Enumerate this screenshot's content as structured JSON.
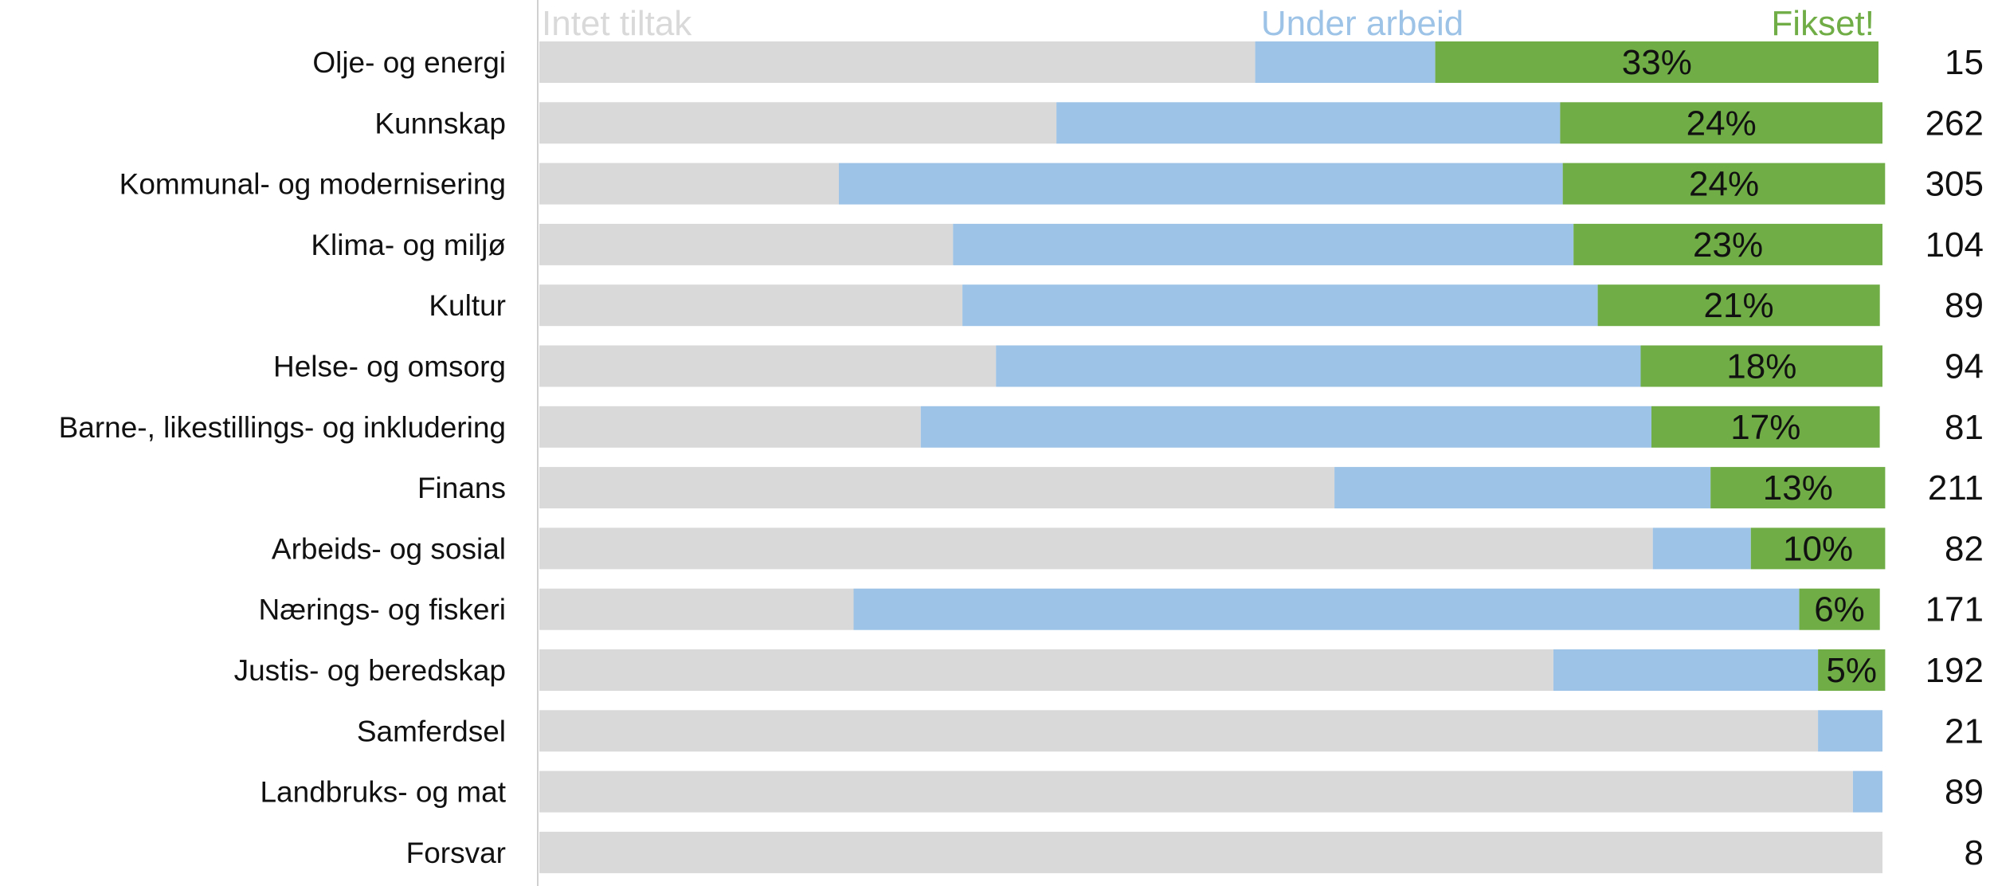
{
  "chart_data": {
    "type": "bar",
    "orientation": "horizontal",
    "stacked": "percent",
    "legend_position": "top",
    "grid": false,
    "xlim": [
      0,
      100
    ],
    "categories": [
      "Olje- og energi",
      "Kunnskap",
      "Kommunal- og modernisering",
      "Klima- og miljø",
      "Kultur",
      "Helse- og omsorg",
      "Barne-, likestillings- og inkludering",
      "Finans",
      "Arbeids- og sosial",
      "Nærings- og fiskeri",
      "Justis- og beredskap",
      "Samferdsel",
      "Landbruks- og mat",
      "Forsvar"
    ],
    "series": [
      {
        "name": "Intet tiltak",
        "color": "#d9d9d9",
        "values": [
          53.3,
          38.5,
          22.3,
          30.8,
          31.5,
          34.0,
          28.4,
          59.2,
          82.9,
          23.4,
          75.5,
          95.2,
          97.8,
          100
        ]
      },
      {
        "name": "Under arbeid",
        "color": "#9dc3e6",
        "values": [
          13.4,
          37.5,
          53.9,
          46.2,
          47.3,
          48.0,
          54.4,
          28.0,
          7.3,
          70.4,
          19.7,
          4.8,
          2.2,
          0
        ]
      },
      {
        "name": "Fikset!",
        "color": "#70ad47",
        "values": [
          33,
          24,
          24,
          23,
          21,
          18,
          17,
          13,
          10,
          6,
          5,
          0,
          0,
          0
        ]
      }
    ],
    "data_labels": [
      "33%",
      "24%",
      "24%",
      "23%",
      "21%",
      "18%",
      "17%",
      "13%",
      "10%",
      "6%",
      "5%",
      "",
      "",
      ""
    ],
    "totals": [
      "15",
      "262",
      "305",
      "104",
      "89",
      "94",
      "81",
      "211",
      "82",
      "171",
      "192",
      "21",
      "89",
      "8"
    ]
  }
}
